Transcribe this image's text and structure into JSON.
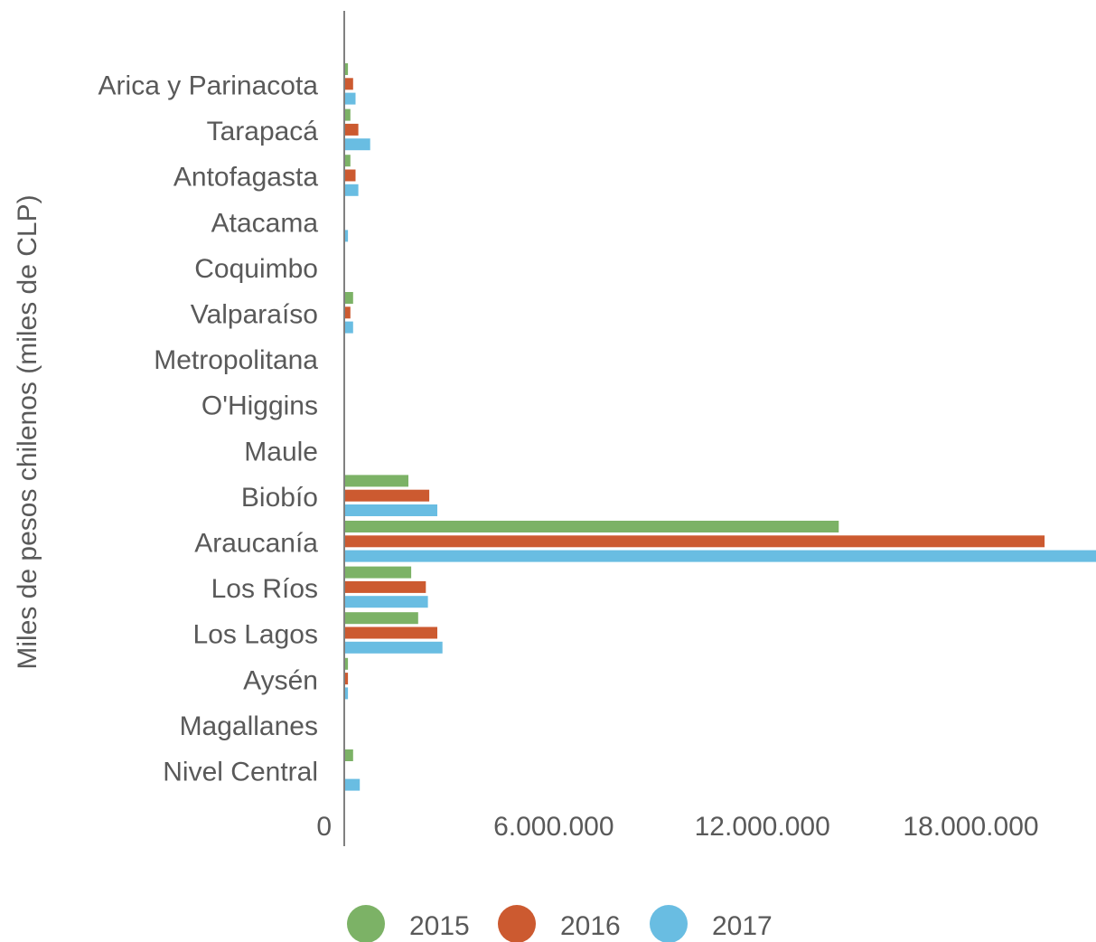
{
  "chart_data": {
    "type": "bar",
    "orientation": "horizontal",
    "ylabel": "Miles de pesos chilenos (miles de CLP)",
    "xlabel": "",
    "title": "",
    "categories": [
      "Arica y Parinacota",
      "Tarapacá",
      "Antofagasta",
      "Atacama",
      "Coquimbo",
      "Valparaíso",
      "Metropolitana",
      "O'Higgins",
      "Maule",
      "Biobío",
      "Araucanía",
      "Los Ríos",
      "Los Lagos",
      "Aysén",
      "Magallanes",
      "Nivel Central"
    ],
    "series": [
      {
        "name": "2015",
        "color": "#7cb266",
        "values": [
          80000,
          150000,
          150000,
          0,
          0,
          230000,
          0,
          0,
          0,
          1820000,
          14200000,
          1900000,
          2100000,
          80000,
          0,
          230000
        ]
      },
      {
        "name": "2016",
        "color": "#cc5a30",
        "values": [
          230000,
          380000,
          300000,
          0,
          0,
          150000,
          0,
          0,
          0,
          2420000,
          20120000,
          2320000,
          2650000,
          80000,
          0,
          0
        ]
      },
      {
        "name": "2017",
        "color": "#69bde2",
        "values": [
          300000,
          720000,
          380000,
          80000,
          0,
          230000,
          0,
          0,
          0,
          2650000,
          21600000,
          2380000,
          2800000,
          80000,
          0,
          420000
        ]
      }
    ],
    "xlim": [
      0,
      21600000
    ],
    "xticks": [
      0,
      6000000,
      12000000,
      18000000
    ],
    "xtick_labels": [
      "0",
      "6.000.000",
      "12.000.000",
      "18.000.000"
    ],
    "grid": false,
    "legend_position": "bottom"
  }
}
